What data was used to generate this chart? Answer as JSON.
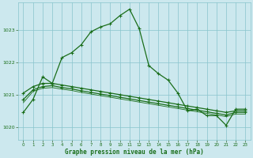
{
  "title": "Graphe pression niveau de la mer (hPa)",
  "background_color": "#cce8ee",
  "grid_color": "#88c4cc",
  "line_color": "#1a6e1a",
  "xlim": [
    -0.5,
    23.5
  ],
  "ylim": [
    1019.6,
    1023.85
  ],
  "yticks": [
    1020,
    1021,
    1022,
    1023
  ],
  "xticks": [
    0,
    1,
    2,
    3,
    4,
    5,
    6,
    7,
    8,
    9,
    10,
    11,
    12,
    13,
    14,
    15,
    16,
    17,
    18,
    19,
    20,
    21,
    22,
    23
  ],
  "series1_x": [
    0,
    1,
    2,
    3,
    4,
    5,
    6,
    7,
    8,
    9,
    10,
    11,
    12,
    13,
    14,
    15,
    16,
    17,
    18,
    19,
    20,
    21,
    22,
    23
  ],
  "series1_y": [
    1020.45,
    1020.85,
    1021.55,
    1021.35,
    1022.15,
    1022.3,
    1022.55,
    1022.95,
    1023.1,
    1023.2,
    1023.45,
    1023.65,
    1023.05,
    1021.9,
    1021.65,
    1021.45,
    1021.05,
    1020.5,
    1020.55,
    1020.35,
    1020.35,
    1020.05,
    1020.55,
    1020.55
  ],
  "series2_x": [
    0,
    1,
    2,
    3,
    4,
    5,
    6,
    7,
    8,
    9,
    10,
    11,
    12,
    13,
    14,
    15,
    16,
    17,
    18,
    19,
    20,
    21,
    22,
    23
  ],
  "series2_y": [
    1021.05,
    1021.25,
    1021.35,
    1021.35,
    1021.3,
    1021.25,
    1021.2,
    1021.15,
    1021.1,
    1021.05,
    1021.0,
    1020.95,
    1020.9,
    1020.85,
    1020.8,
    1020.75,
    1020.7,
    1020.65,
    1020.6,
    1020.55,
    1020.5,
    1020.45,
    1020.5,
    1020.5
  ],
  "series3_x": [
    0,
    1,
    2,
    3,
    4,
    5,
    6,
    7,
    8,
    9,
    10,
    11,
    12,
    13,
    14,
    15,
    16,
    17,
    18,
    19,
    20,
    21,
    22,
    23
  ],
  "series3_y": [
    1020.85,
    1021.15,
    1021.25,
    1021.28,
    1021.22,
    1021.18,
    1021.12,
    1021.07,
    1021.02,
    1020.97,
    1020.92,
    1020.87,
    1020.82,
    1020.77,
    1020.72,
    1020.67,
    1020.62,
    1020.57,
    1020.52,
    1020.47,
    1020.42,
    1020.37,
    1020.45,
    1020.45
  ],
  "series4_x": [
    0,
    1,
    2,
    3,
    4,
    5,
    6,
    7,
    8,
    9,
    10,
    11,
    12,
    13,
    14,
    15,
    16,
    17,
    18,
    19,
    20,
    21,
    22,
    23
  ],
  "series4_y": [
    1020.75,
    1021.1,
    1021.2,
    1021.22,
    1021.17,
    1021.13,
    1021.07,
    1021.02,
    1020.97,
    1020.92,
    1020.87,
    1020.82,
    1020.77,
    1020.72,
    1020.67,
    1020.62,
    1020.57,
    1020.52,
    1020.47,
    1020.42,
    1020.37,
    1020.32,
    1020.4,
    1020.4
  ]
}
